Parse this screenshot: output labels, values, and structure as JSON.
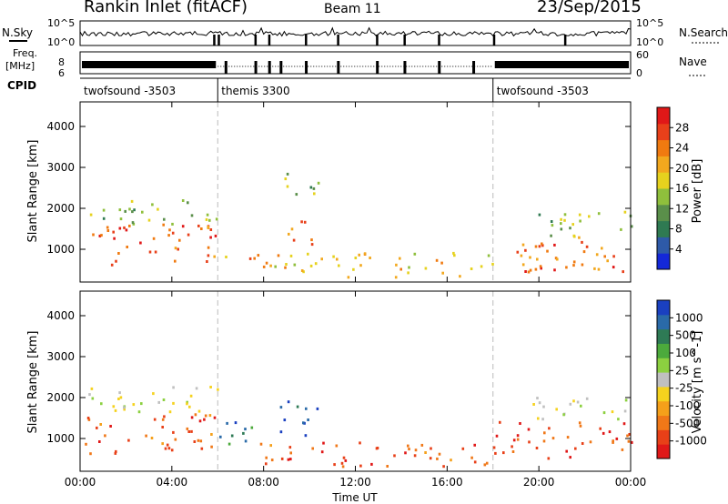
{
  "header": {
    "station": "Rankin Inlet (fitACF)",
    "beam": "Beam 11",
    "date": "23/Sep/2015"
  },
  "top_panels": {
    "nsky_label": "N.Sky",
    "nsky_ticks": [
      "10^5",
      "10^0"
    ],
    "nsearch_label": "N.Search",
    "freq_label_1": "Freq.",
    "freq_label_2": "[MHz]",
    "freq_ticks": [
      "8",
      "6"
    ],
    "nave_label": "Nave",
    "nave_ticks": [
      "60",
      "0"
    ],
    "cpid_label": "CPID",
    "cpid_segments": [
      {
        "label": "twofsound -3503",
        "start_hour": 0,
        "end_hour": 6
      },
      {
        "label": "themis 3300",
        "start_hour": 6,
        "end_hour": 18
      },
      {
        "label": "twofsound -3503",
        "start_hour": 18,
        "end_hour": 24
      }
    ]
  },
  "chart_data": [
    {
      "type": "heatmap",
      "title": "Power",
      "xlabel": "Time UT",
      "ylabel": "Slant Range [km]",
      "xlim": [
        0,
        24
      ],
      "ylim": [
        200,
        4600
      ],
      "x_ticks": [
        "00:00",
        "04:00",
        "08:00",
        "12:00",
        "16:00",
        "20:00",
        "00:00"
      ],
      "y_ticks": [
        1000,
        2000,
        3000,
        4000
      ],
      "colorbar": {
        "label": "Power [dB]",
        "ticks": [
          4,
          8,
          12,
          16,
          20,
          24,
          28
        ],
        "colors": [
          "#1428d8",
          "#2e5aa8",
          "#2f7a52",
          "#5a8f4a",
          "#8fbf3c",
          "#e6d21e",
          "#f2a81e",
          "#f07a10",
          "#e8401a",
          "#e01818"
        ]
      },
      "regions": [
        {
          "t0": 0.2,
          "t1": 6.0,
          "r0": 600,
          "r1": 1600,
          "value": 26
        },
        {
          "t0": 0.2,
          "t1": 6.0,
          "r0": 1600,
          "r1": 2200,
          "value": 14
        },
        {
          "t0": 6.0,
          "t1": 7.6,
          "r0": 700,
          "r1": 1000,
          "value": 22
        },
        {
          "t0": 9.0,
          "t1": 10.3,
          "r0": 1100,
          "r1": 1900,
          "value": 24
        },
        {
          "t0": 8.6,
          "t1": 10.5,
          "r0": 2300,
          "r1": 2900,
          "value": 14
        },
        {
          "t0": 7.6,
          "t1": 18.0,
          "r0": 300,
          "r1": 900,
          "value": 20
        },
        {
          "t0": 18.0,
          "t1": 24.0,
          "r0": 400,
          "r1": 1300,
          "value": 24
        },
        {
          "t0": 19.0,
          "t1": 24.0,
          "r0": 1300,
          "r1": 1900,
          "value": 14
        }
      ]
    },
    {
      "type": "heatmap",
      "title": "Velocity",
      "xlabel": "Time UT",
      "ylabel": "Slant Range [km]",
      "xlim": [
        0,
        24
      ],
      "ylim": [
        200,
        4600
      ],
      "x_ticks": [
        "00:00",
        "04:00",
        "08:00",
        "12:00",
        "16:00",
        "20:00",
        "00:00"
      ],
      "y_ticks": [
        1000,
        2000,
        3000,
        4000
      ],
      "colorbar": {
        "label": "Velocity [m s^-1]",
        "ticks": [
          "1000",
          "500",
          "100",
          "25",
          "-25",
          "-100",
          "-500",
          "-1000"
        ],
        "colors": [
          "#1a40c0",
          "#2a6aa8",
          "#2e7a55",
          "#4caa3c",
          "#8cd040",
          "#c0c0c0",
          "#f5d21e",
          "#f5a01a",
          "#f07818",
          "#e84018",
          "#e01818"
        ]
      },
      "regions": [
        {
          "t0": 0.2,
          "t1": 6.0,
          "r0": 600,
          "r1": 1600,
          "value": -150
        },
        {
          "t0": 0.2,
          "t1": 6.0,
          "r0": 1600,
          "r1": 2300,
          "value": 0
        },
        {
          "t0": 6.0,
          "t1": 7.6,
          "r0": 700,
          "r1": 1500,
          "value": 150
        },
        {
          "t0": 8.6,
          "t1": 10.3,
          "r0": 1000,
          "r1": 1900,
          "value": 400
        },
        {
          "t0": 7.6,
          "t1": 18.0,
          "r0": 300,
          "r1": 900,
          "value": -200
        },
        {
          "t0": 18.0,
          "t1": 24.0,
          "r0": 500,
          "r1": 1400,
          "value": -250
        },
        {
          "t0": 19.5,
          "t1": 24.0,
          "r0": 1400,
          "r1": 2000,
          "value": 0
        }
      ]
    }
  ]
}
